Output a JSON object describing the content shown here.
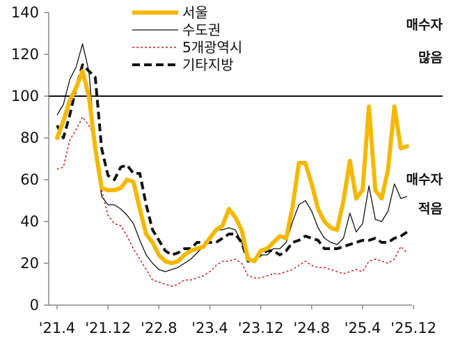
{
  "chart_data": {
    "type": "line",
    "ylim": [
      0,
      140
    ],
    "yticks": [
      0,
      20,
      40,
      60,
      80,
      100,
      120,
      140
    ],
    "x_tick_labels": [
      "'21.4",
      "'21.12",
      "'22.8",
      "'23.4",
      "'23.12",
      "'24.8",
      "'25.4",
      "'25.12"
    ],
    "reference_line": 100,
    "annotations": {
      "high": [
        "매수자",
        "많음"
      ],
      "low": [
        "매수자",
        "적음"
      ]
    },
    "legend": {
      "placement": "top-center"
    },
    "series": [
      {
        "name": "서울",
        "color": "#F5B800",
        "style": "solid-thick",
        "values": [
          80,
          88,
          98,
          104,
          112,
          100,
          75,
          56,
          55,
          55,
          56,
          60,
          59,
          46,
          34,
          30,
          24,
          21,
          20,
          21,
          24,
          26,
          27,
          28,
          32,
          36,
          38,
          46,
          42,
          36,
          22,
          21,
          26,
          27,
          30,
          33,
          32,
          47,
          68,
          68,
          58,
          46,
          40,
          37,
          36,
          50,
          69,
          51,
          55,
          95,
          55,
          51,
          65,
          95,
          75,
          76
        ]
      },
      {
        "name": "수도권",
        "color": "#111111",
        "style": "solid-thin",
        "values": [
          91,
          96,
          108,
          114,
          125,
          112,
          76,
          52,
          48,
          48,
          46,
          43,
          39,
          31,
          24,
          20,
          17,
          16,
          17,
          18,
          20,
          22,
          25,
          28,
          33,
          36,
          36,
          37,
          36,
          30,
          21,
          22,
          24,
          24,
          27,
          27,
          30,
          40,
          48,
          50,
          45,
          37,
          32,
          30,
          29,
          32,
          44,
          35,
          39,
          57,
          41,
          40,
          45,
          58,
          51,
          52
        ]
      },
      {
        "name": "5개광역시",
        "color": "#C8201D",
        "style": "dashed-fine",
        "values": [
          65,
          66,
          79,
          84,
          90,
          86,
          80,
          55,
          43,
          39,
          38,
          33,
          27,
          22,
          17,
          12,
          11,
          10,
          9,
          10,
          12,
          12,
          13,
          14,
          16,
          19,
          21,
          21,
          22,
          20,
          14,
          13,
          13,
          14,
          15,
          15,
          16,
          17,
          19,
          21,
          19,
          18,
          18,
          17,
          16,
          15,
          16,
          17,
          16,
          21,
          22,
          21,
          20,
          22,
          28,
          25
        ]
      },
      {
        "name": "기타지방",
        "color": "#111111",
        "style": "dashed-thick",
        "values": [
          86,
          80,
          91,
          104,
          115,
          112,
          109,
          75,
          62,
          60,
          66,
          67,
          63,
          63,
          48,
          36,
          31,
          26,
          24,
          25,
          27,
          27,
          30,
          30,
          30,
          30,
          32,
          34,
          34,
          30,
          21,
          22,
          24,
          26,
          26,
          24,
          26,
          30,
          31,
          33,
          32,
          31,
          27,
          27,
          27,
          28,
          29,
          30,
          31,
          31,
          32,
          30,
          30,
          32,
          33,
          35
        ]
      }
    ]
  }
}
